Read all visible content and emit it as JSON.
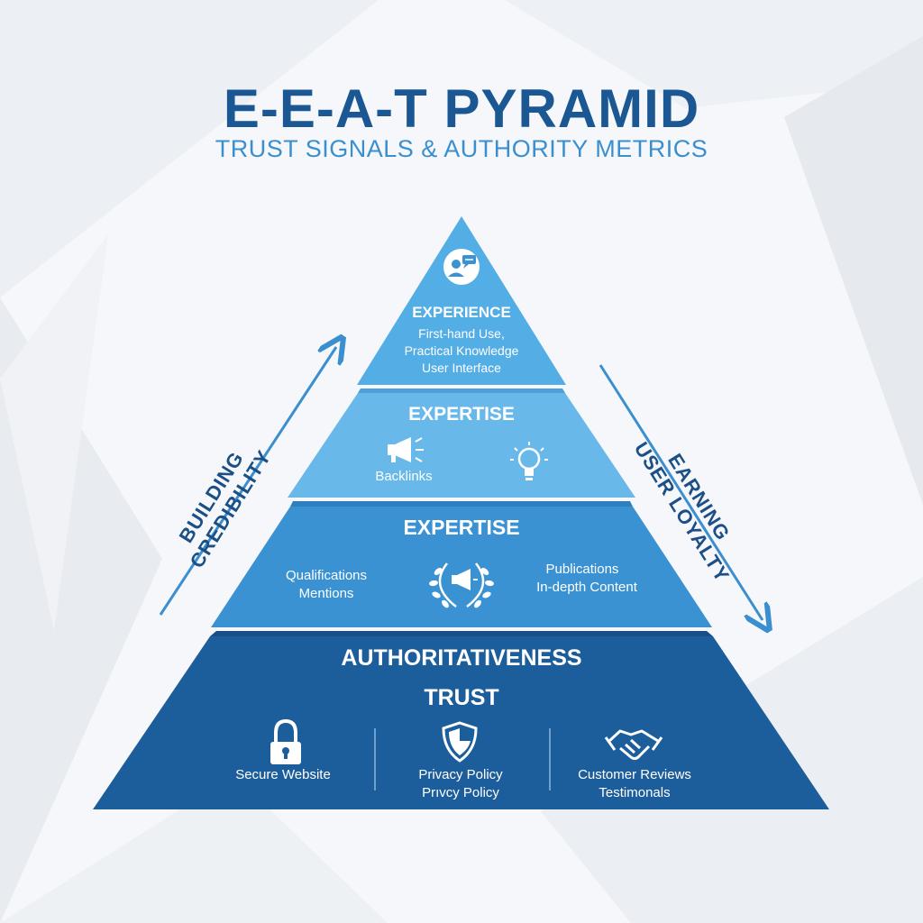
{
  "header": {
    "title": "E-E-A-T PYRAMID",
    "subtitle": "TRUST SIGNALS & AUTHORITY METRICS"
  },
  "colors": {
    "tier1": "#54aee6",
    "tier2": "#68b9e9",
    "tier3": "#3a92d3",
    "tier4": "#1c5d9c",
    "title": "#1b5793",
    "subtitle": "#3b8fcf",
    "arrows": "#3b8fcf",
    "side_text": "#1b4f85"
  },
  "pyramid": {
    "tier1": {
      "icon": "user-chat-icon",
      "heading": "EXPERIENCE",
      "lines": [
        "First-hand Use,",
        "Practical Knowledge",
        "User Interface"
      ]
    },
    "tier2": {
      "heading": "EXPERTISE",
      "items": [
        {
          "icon": "megaphone-icon",
          "label": "Backlinks"
        },
        {
          "icon": "lightbulb-icon",
          "label": ""
        }
      ]
    },
    "tier3": {
      "heading": "EXPERTISE",
      "left_lines": [
        "Qualifications",
        "Mentions"
      ],
      "center_icon": "laurel-megaphone-icon",
      "right_lines": [
        "Publications",
        "In-depth Content"
      ]
    },
    "tier4": {
      "heading": "AUTHORITATIVENESS",
      "subheading": "TRUST",
      "items": [
        {
          "icon": "padlock-icon",
          "lines": [
            "Secure Website"
          ]
        },
        {
          "icon": "shield-icon",
          "lines": [
            "Privacy Policy",
            "Prıvcy Policy"
          ]
        },
        {
          "icon": "handshake-icon",
          "lines": [
            "Customer Reviews",
            "Testimonals"
          ]
        }
      ]
    }
  },
  "side_labels": {
    "left": [
      "BUILDING",
      "CREDIBILITY"
    ],
    "right": [
      "EARNING",
      "USER LOYALTY"
    ]
  }
}
